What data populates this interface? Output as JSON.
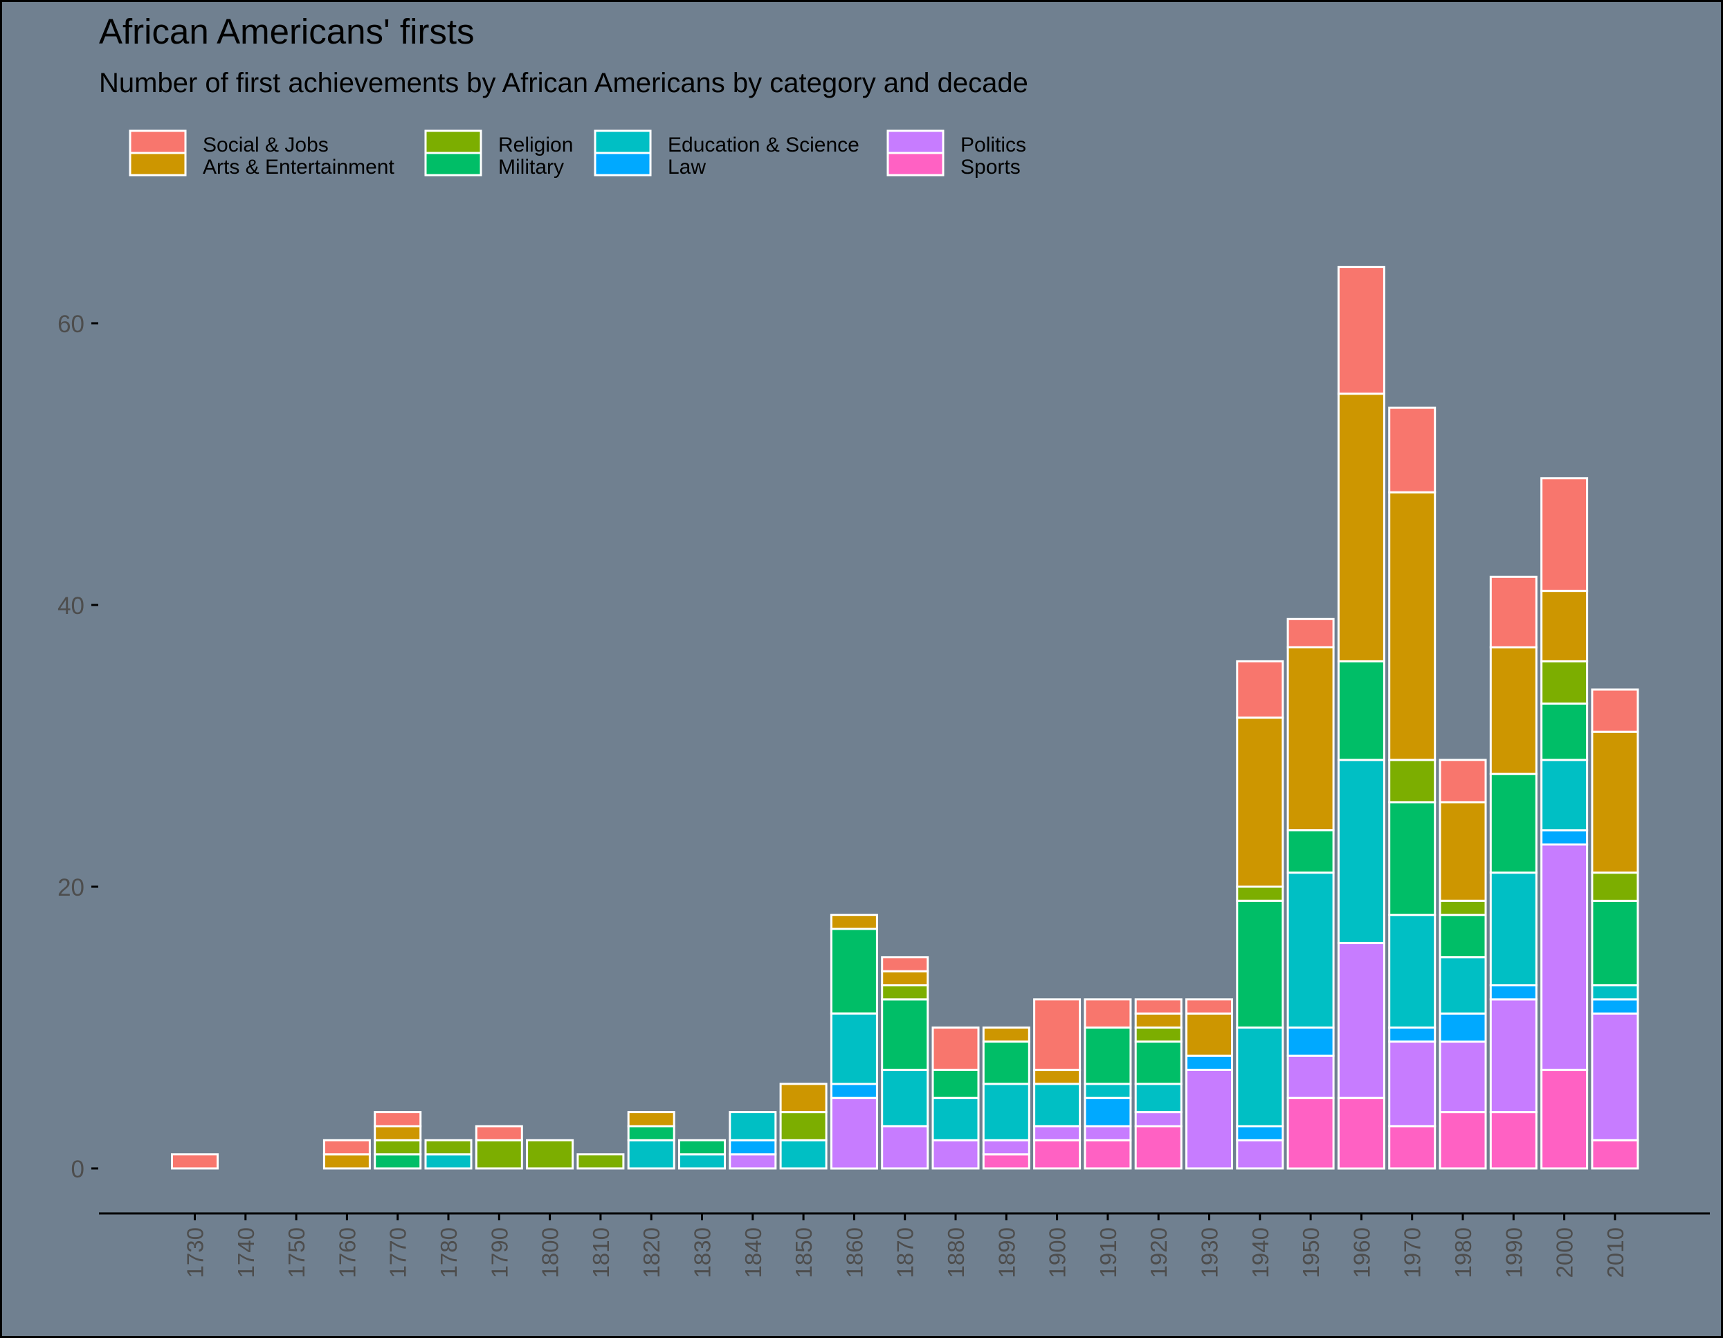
{
  "colors": {
    "background": "#708090",
    "bar_outline": "#FFFFFF",
    "axis": "#000000",
    "tick_text": "#4D4D4D",
    "title_text": "#000000"
  },
  "chart_data": {
    "type": "bar",
    "stacked": true,
    "title": "African Americans' firsts",
    "subtitle": "Number of first achievements by African Americans by category and decade",
    "xlabel": "",
    "ylabel": "",
    "ylim": [
      0,
      67
    ],
    "yticks": [
      0,
      20,
      40,
      60
    ],
    "grid": false,
    "legend_position": "top-left",
    "categories": [
      "1730",
      "1740",
      "1750",
      "1760",
      "1770",
      "1780",
      "1790",
      "1800",
      "1810",
      "1820",
      "1830",
      "1840",
      "1850",
      "1860",
      "1870",
      "1880",
      "1890",
      "1900",
      "1910",
      "1920",
      "1930",
      "1940",
      "1950",
      "1960",
      "1970",
      "1980",
      "1990",
      "2000",
      "2010"
    ],
    "series": [
      {
        "name": "Sports",
        "color": "#FF61C3",
        "values": [
          0,
          0,
          0,
          0,
          0,
          0,
          0,
          0,
          0,
          0,
          0,
          0,
          0,
          0,
          0,
          0,
          1,
          2,
          2,
          3,
          0,
          0,
          5,
          5,
          3,
          4,
          4,
          7,
          2
        ]
      },
      {
        "name": "Politics",
        "color": "#C77CFF",
        "values": [
          0,
          0,
          0,
          0,
          0,
          0,
          0,
          0,
          0,
          0,
          0,
          1,
          0,
          5,
          3,
          2,
          1,
          1,
          1,
          1,
          7,
          2,
          3,
          11,
          6,
          5,
          8,
          16,
          9
        ]
      },
      {
        "name": "Law",
        "color": "#00A9FF",
        "values": [
          0,
          0,
          0,
          0,
          0,
          0,
          0,
          0,
          0,
          0,
          0,
          1,
          0,
          1,
          0,
          0,
          0,
          0,
          2,
          0,
          1,
          1,
          2,
          0,
          1,
          2,
          1,
          1,
          1
        ]
      },
      {
        "name": "Education & Science",
        "color": "#00BFC4",
        "values": [
          0,
          0,
          0,
          0,
          0,
          1,
          0,
          0,
          0,
          2,
          1,
          2,
          2,
          5,
          4,
          3,
          4,
          3,
          1,
          2,
          0,
          7,
          11,
          13,
          8,
          4,
          8,
          5,
          1
        ]
      },
      {
        "name": "Military",
        "color": "#00BE67",
        "values": [
          0,
          0,
          0,
          0,
          1,
          0,
          0,
          0,
          0,
          1,
          1,
          0,
          0,
          6,
          5,
          2,
          3,
          0,
          4,
          3,
          0,
          9,
          3,
          7,
          8,
          3,
          7,
          4,
          6
        ]
      },
      {
        "name": "Religion",
        "color": "#7CAE00",
        "values": [
          0,
          0,
          0,
          0,
          1,
          1,
          2,
          2,
          1,
          0,
          0,
          0,
          2,
          0,
          1,
          0,
          0,
          0,
          0,
          1,
          0,
          1,
          0,
          0,
          3,
          1,
          0,
          3,
          2
        ]
      },
      {
        "name": "Arts & Entertainment",
        "color": "#CD9600",
        "values": [
          0,
          0,
          0,
          1,
          1,
          0,
          0,
          0,
          0,
          1,
          0,
          0,
          2,
          1,
          1,
          0,
          1,
          1,
          0,
          1,
          3,
          12,
          13,
          19,
          19,
          7,
          9,
          5,
          10
        ]
      },
      {
        "name": "Social & Jobs",
        "color": "#F8766D",
        "values": [
          1,
          0,
          0,
          1,
          1,
          0,
          1,
          0,
          0,
          0,
          0,
          0,
          0,
          0,
          1,
          3,
          0,
          5,
          2,
          1,
          1,
          4,
          2,
          9,
          6,
          3,
          5,
          8,
          3
        ]
      }
    ],
    "legend": [
      [
        "Social & Jobs",
        "Religion",
        "Education & Science",
        "Politics"
      ],
      [
        "Arts & Entertainment",
        "Military",
        "Law",
        "Sports"
      ]
    ]
  }
}
